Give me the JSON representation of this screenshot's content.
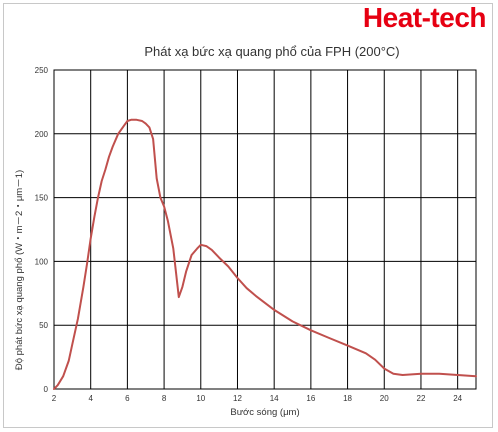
{
  "brand": {
    "text": "Heat-tech",
    "color": "#e60012"
  },
  "chart_data": {
    "type": "line",
    "title": "Phát xạ bức xạ quang phổ của FPH (200°C)",
    "xlabel": "Bước sóng (μm)",
    "ylabel": "Độ phát bức xạ quang phổ (W・m－2・μm－1)",
    "xlim": [
      2,
      25
    ],
    "ylim": [
      0,
      250
    ],
    "xticks": [
      2,
      4,
      6,
      8,
      10,
      12,
      14,
      16,
      18,
      20,
      22,
      24
    ],
    "yticks": [
      0,
      50,
      100,
      150,
      200,
      250
    ],
    "grid": true,
    "legend": "none",
    "series": [
      {
        "color": "#c0504d",
        "x": [
          2.0,
          2.2,
          2.5,
          2.8,
          3.0,
          3.3,
          3.6,
          3.8,
          4.0,
          4.2,
          4.4,
          4.6,
          4.8,
          5.0,
          5.2,
          5.5,
          5.8,
          6.0,
          6.2,
          6.5,
          6.8,
          7.0,
          7.2,
          7.4,
          7.6,
          7.8,
          8.0,
          8.2,
          8.5,
          8.8,
          9.0,
          9.2,
          9.5,
          9.8,
          10.0,
          10.3,
          10.6,
          11.0,
          11.5,
          12.0,
          12.5,
          13.0,
          14.0,
          15.0,
          16.0,
          17.0,
          18.0,
          19.0,
          19.5,
          20.0,
          20.5,
          21.0,
          22.0,
          23.0,
          24.0,
          25.0
        ],
        "y": [
          0,
          3,
          10,
          22,
          35,
          55,
          80,
          98,
          118,
          135,
          150,
          163,
          172,
          182,
          190,
          200,
          206,
          210,
          211,
          211,
          210,
          208,
          205,
          196,
          165,
          150,
          143,
          132,
          110,
          72,
          80,
          92,
          105,
          110,
          113,
          112,
          109,
          103,
          96,
          87,
          79,
          73,
          62,
          53,
          46,
          40,
          34,
          28,
          23,
          16,
          12,
          11,
          12,
          12,
          11,
          10
        ]
      }
    ]
  }
}
